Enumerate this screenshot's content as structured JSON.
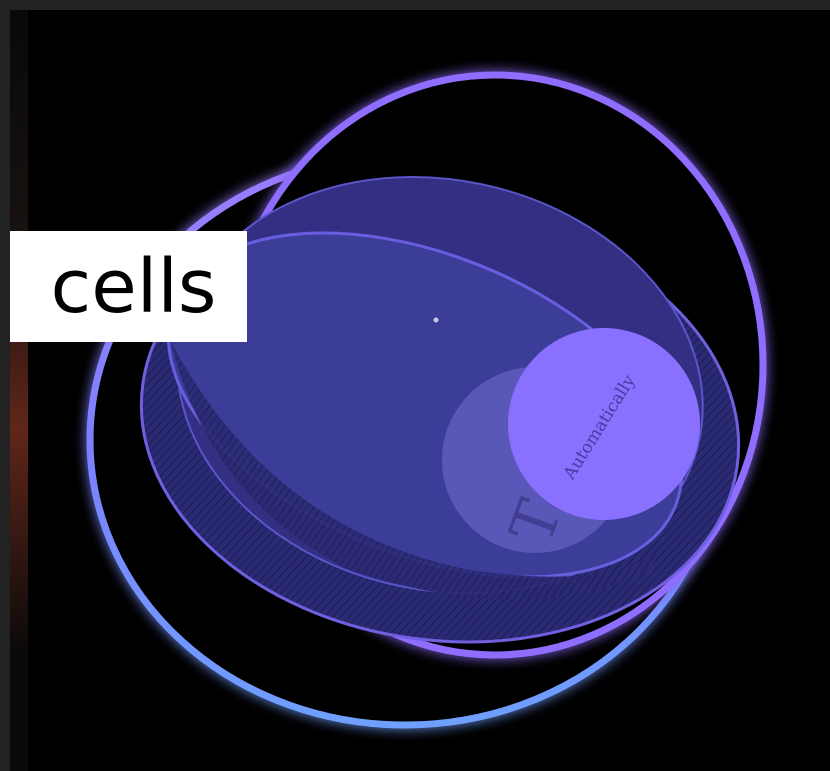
{
  "label": {
    "text": "cells"
  },
  "small_circle_text": "Automatically",
  "faint_glyph": "T",
  "colors": {
    "frame": "#222222",
    "background": "#000000",
    "glow": "#8a6cff",
    "outer_fill": "#2f2b7a",
    "inner_fill": "#3d3f9a",
    "accent_circle": "#8a70ff",
    "muted_circle": "#5a58b8",
    "label_bg": "#ffffff",
    "label_text": "#000000"
  }
}
